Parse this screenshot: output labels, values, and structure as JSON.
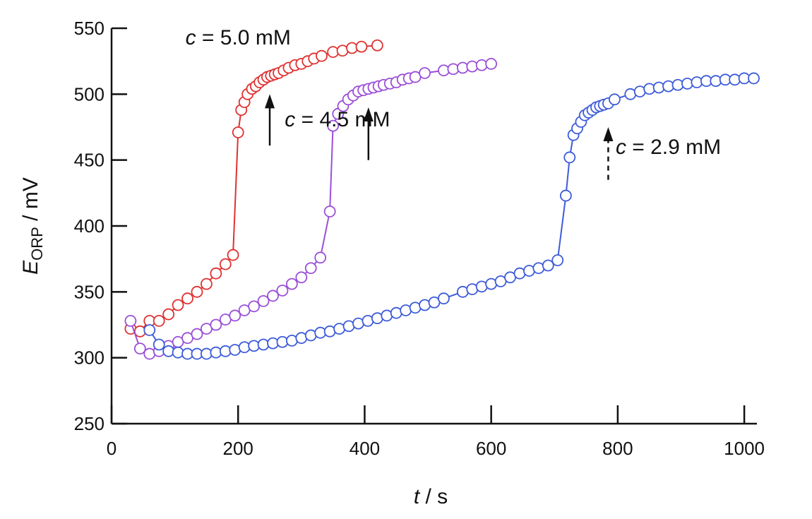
{
  "chart_data": {
    "type": "line",
    "xlabel_var": "t",
    "xlabel_unit": " / s",
    "ylabel_var": "E",
    "ylabel_sub": "ORP",
    "ylabel_unit": " / mV",
    "xlim": [
      0,
      1020
    ],
    "ylim": [
      250,
      550
    ],
    "xticks": [
      "0",
      "200",
      "400",
      "600",
      "800",
      "1000"
    ],
    "yticks": [
      "250",
      "300",
      "350",
      "400",
      "450",
      "500",
      "550"
    ],
    "grid": false,
    "legend": "none",
    "series": [
      {
        "color": "#e03131",
        "x": [
          30,
          45,
          60,
          75,
          90,
          105,
          120,
          135,
          150,
          165,
          180,
          192,
          200,
          205,
          210,
          215,
          222,
          228,
          234,
          240,
          246,
          252,
          258,
          264,
          272,
          280,
          290,
          300,
          310,
          320,
          332,
          350,
          365,
          380,
          395,
          420
        ],
        "y": [
          322,
          320,
          328,
          328,
          333,
          340,
          345,
          350,
          356,
          364,
          371,
          378,
          471,
          488,
          494,
          500,
          504,
          506,
          509,
          511,
          513,
          514,
          515,
          516,
          518,
          520,
          522,
          523,
          525,
          527,
          529,
          532,
          533,
          535,
          536,
          537
        ]
      },
      {
        "color": "#9b4fd8",
        "x": [
          30,
          45,
          60,
          75,
          90,
          105,
          120,
          135,
          150,
          165,
          180,
          195,
          210,
          225,
          240,
          255,
          270,
          285,
          300,
          315,
          330,
          345,
          350,
          358,
          366,
          374,
          382,
          390,
          398,
          406,
          414,
          422,
          430,
          440,
          450,
          460,
          470,
          480,
          495,
          525,
          540,
          555,
          570,
          585,
          600
        ],
        "y": [
          328,
          307,
          303,
          305,
          309,
          312,
          315,
          318,
          322,
          325,
          329,
          332,
          336,
          339,
          343,
          347,
          351,
          356,
          361,
          368,
          376,
          411,
          476,
          485,
          491,
          496,
          499,
          502,
          503,
          504,
          505,
          506,
          507,
          508,
          509,
          511,
          512,
          513,
          516,
          518,
          519,
          520,
          521,
          522,
          523
        ]
      },
      {
        "color": "#3d5bd9",
        "x": [
          60,
          75,
          90,
          105,
          120,
          135,
          150,
          165,
          180,
          195,
          210,
          225,
          240,
          255,
          270,
          285,
          300,
          315,
          330,
          345,
          360,
          375,
          390,
          405,
          420,
          435,
          450,
          465,
          480,
          495,
          510,
          525,
          555,
          570,
          585,
          600,
          615,
          630,
          645,
          660,
          675,
          690,
          705,
          718,
          724,
          730,
          736,
          742,
          748,
          754,
          760,
          766,
          772,
          778,
          785,
          795,
          820,
          835,
          850,
          865,
          880,
          895,
          910,
          925,
          940,
          955,
          970,
          985,
          1000,
          1015
        ],
        "y": [
          321,
          310,
          305,
          304,
          303,
          303,
          303,
          304,
          305,
          306,
          308,
          309,
          310,
          311,
          312,
          313,
          315,
          317,
          319,
          320,
          322,
          324,
          326,
          328,
          330,
          332,
          334,
          336,
          338,
          340,
          342,
          345,
          350,
          352,
          354,
          356,
          358,
          361,
          364,
          366,
          368,
          370,
          374,
          423,
          452,
          469,
          474,
          479,
          484,
          486,
          488,
          490,
          491,
          492,
          493,
          496,
          500,
          502,
          504,
          505,
          506,
          507,
          508,
          509,
          510,
          510,
          511,
          511,
          512,
          512
        ]
      }
    ],
    "annotations": [
      {
        "var": "c",
        "text": " = 5.0 mM",
        "at": [
          200,
          543
        ]
      },
      {
        "var": "c",
        "text": " = 4.5 mM",
        "at": [
          357,
          481
        ]
      },
      {
        "var": "c",
        "text": " = 2.9 mM",
        "at": [
          880,
          460
        ]
      }
    ],
    "arrows": [
      {
        "x": 250,
        "y_from": 461,
        "y_to": 500,
        "style": "solid"
      },
      {
        "x": 406,
        "y_from": 450,
        "y_to": 490,
        "style": "solid"
      },
      {
        "x": 785,
        "y_from": 435,
        "y_to": 475,
        "style": "dashed"
      }
    ]
  }
}
